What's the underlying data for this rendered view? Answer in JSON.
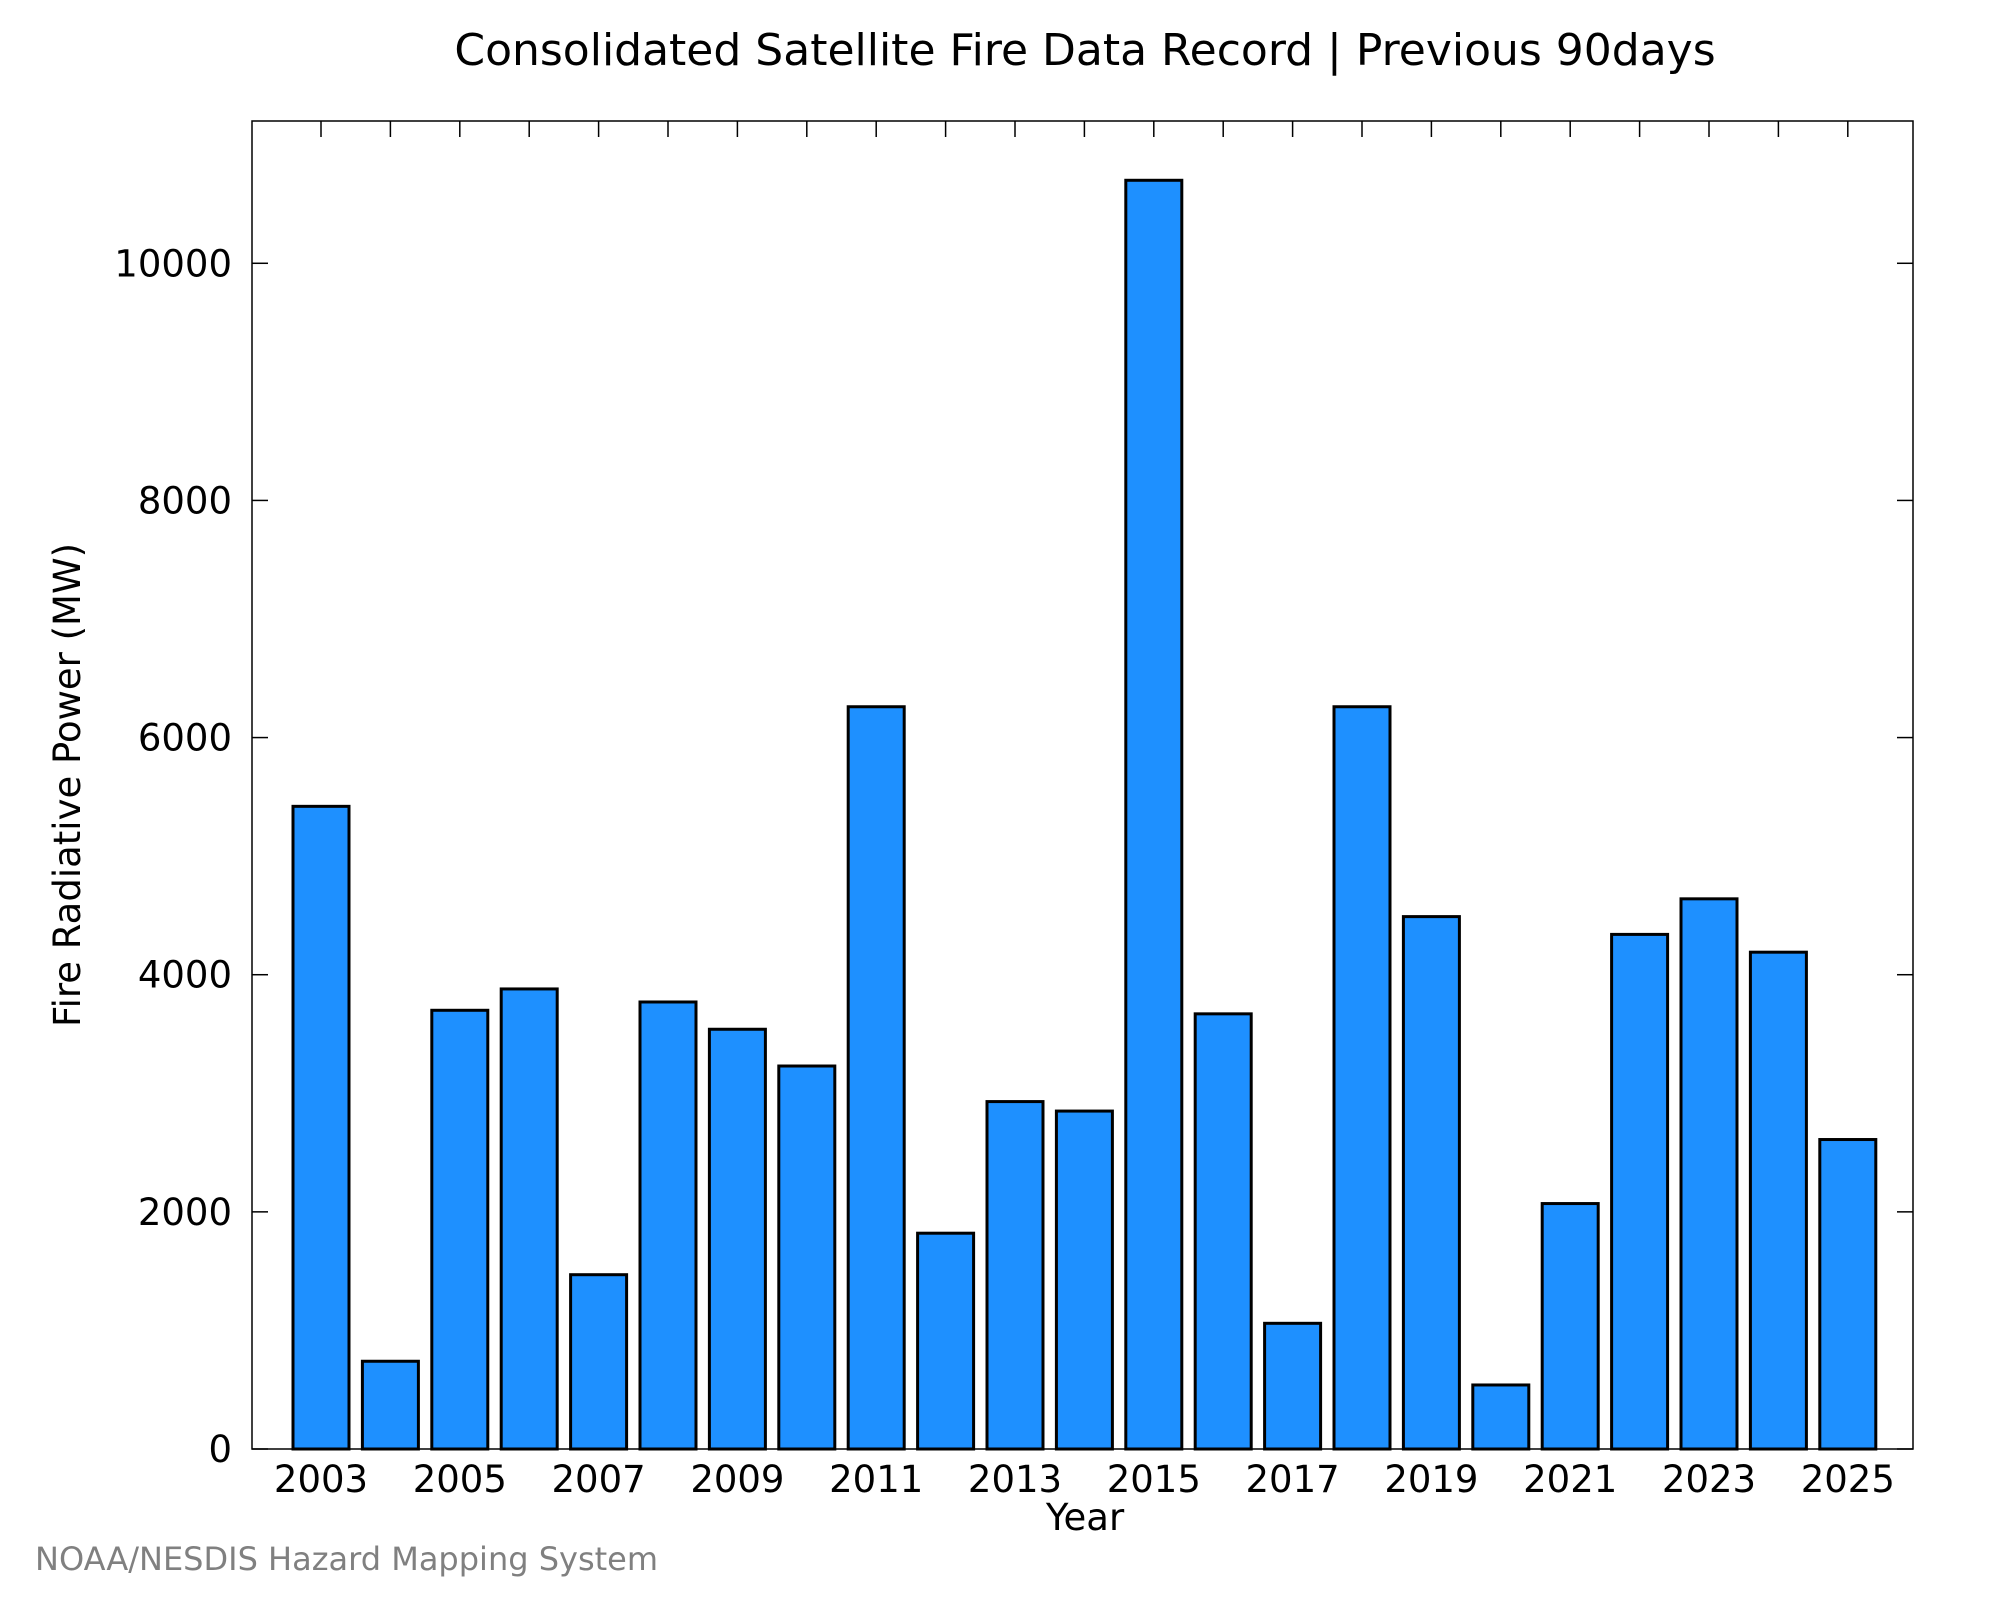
{
  "chart_data": {
    "type": "bar",
    "title": "Consolidated Satellite Fire Data Record | Previous 90days",
    "xlabel": "Year",
    "ylabel": "Fire Radiative Power (MW)",
    "categories": [
      "2003",
      "2004",
      "2005",
      "2006",
      "2007",
      "2008",
      "2009",
      "2010",
      "2011",
      "2012",
      "2013",
      "2014",
      "2015",
      "2016",
      "2017",
      "2018",
      "2019",
      "2020",
      "2021",
      "2022",
      "2023",
      "2024",
      "2025"
    ],
    "values": [
      5420,
      740,
      3700,
      3880,
      1470,
      3770,
      3540,
      3230,
      6260,
      1820,
      2930,
      2850,
      10700,
      3670,
      1060,
      6260,
      4490,
      540,
      2070,
      4340,
      4640,
      4190,
      2610
    ],
    "x_tick_labels": [
      "2003",
      "2005",
      "2007",
      "2009",
      "2011",
      "2013",
      "2015",
      "2017",
      "2019",
      "2021",
      "2023",
      "2025"
    ],
    "y_ticks": [
      0,
      2000,
      4000,
      6000,
      8000,
      10000
    ],
    "ylim": [
      0,
      11200
    ],
    "grid": false,
    "bar_color": "#1E90FF",
    "credit": "NOAA/NESDIS Hazard Mapping System"
  }
}
